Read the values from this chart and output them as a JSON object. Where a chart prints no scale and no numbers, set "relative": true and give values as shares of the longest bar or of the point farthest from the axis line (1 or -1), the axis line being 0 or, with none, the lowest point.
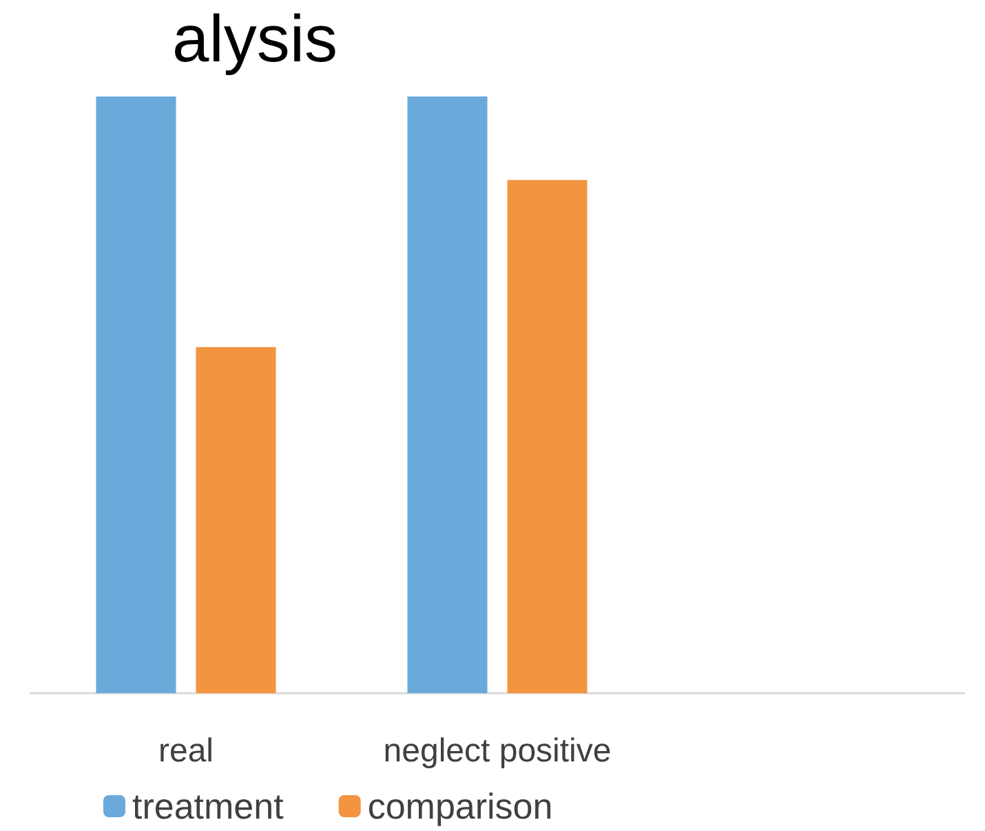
{
  "chart_data": {
    "type": "bar",
    "title": "alysis",
    "relative": true,
    "categories": [
      "real",
      "neglect positive",
      null
    ],
    "series": [
      {
        "name": "treatment",
        "color": "#6aaadb",
        "values": [
          1,
          1,
          null
        ]
      },
      {
        "name": "comparison",
        "color": "#f39441",
        "values": [
          0.58,
          0.86,
          null
        ]
      }
    ],
    "legend": "bottom"
  }
}
